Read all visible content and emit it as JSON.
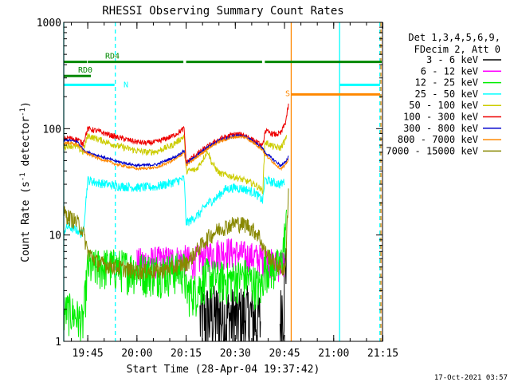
{
  "chart_data": {
    "type": "line",
    "title": "RHESSI Observing Summary Count Rates",
    "xlabel": "Start Time (28-Apr-04 19:37:42)",
    "ylabel_main": "Count Rate (s",
    "ylabel_exp1": "-1",
    "ylabel_mid": " detector",
    "ylabel_exp2": "-1",
    "ylabel_close": ")",
    "ylog": true,
    "ylim": [
      1,
      1000
    ],
    "xlim": [
      19.628,
      21.248
    ],
    "x_ticks": [
      {
        "x": 19.75,
        "label": "19:45"
      },
      {
        "x": 20.0,
        "label": "20:00"
      },
      {
        "x": 20.25,
        "label": "20:15"
      },
      {
        "x": 20.5,
        "label": "20:30"
      },
      {
        "x": 20.75,
        "label": "20:45"
      },
      {
        "x": 21.0,
        "label": "21:00"
      },
      {
        "x": 21.25,
        "label": "21:15"
      }
    ],
    "y_ticks": [
      {
        "y": 1,
        "label": "1"
      },
      {
        "y": 10,
        "label": "10"
      },
      {
        "y": 100,
        "label": "100"
      },
      {
        "y": 1000,
        "label": "1000"
      }
    ],
    "legend_header": [
      "Det 1,3,4,5,6,9,",
      "FDecim 2, Att 0"
    ],
    "series": [
      {
        "name": "3 - 6 keV",
        "color": "#000000",
        "points": [
          [
            20.3,
            null
          ],
          [
            20.32,
            1.7
          ],
          [
            20.35,
            1.8
          ],
          [
            20.4,
            1.8
          ],
          [
            20.45,
            1.7
          ],
          [
            20.5,
            1.7
          ],
          [
            20.55,
            1.8
          ],
          [
            20.59,
            1.7
          ],
          [
            20.63,
            1.6
          ],
          [
            20.65,
            null
          ],
          [
            20.727,
            1.5
          ],
          [
            20.74,
            2.5
          ],
          [
            20.76,
            8
          ],
          [
            20.78,
            null
          ]
        ]
      },
      {
        "name": "6 - 12 keV",
        "color": "#ff00ff",
        "points": [
          [
            20.0,
            5.6
          ],
          [
            20.1,
            5.8
          ],
          [
            20.25,
            6.0
          ],
          [
            20.28,
            5.6
          ],
          [
            20.35,
            6.5
          ],
          [
            20.45,
            7.2
          ],
          [
            20.55,
            6.5
          ],
          [
            20.65,
            6.0
          ],
          [
            20.7,
            5.3
          ],
          [
            20.75,
            5.6
          ]
        ]
      },
      {
        "name": "12 - 25 keV",
        "color": "#00ee00",
        "points": [
          [
            19.63,
            1.9
          ],
          [
            19.65,
            2.0
          ],
          [
            19.7,
            1.7
          ],
          [
            19.725,
            1.5
          ],
          [
            19.75,
            5.0
          ],
          [
            19.85,
            5.2
          ],
          [
            19.95,
            5.0
          ],
          [
            20.05,
            4.6
          ],
          [
            20.15,
            4.6
          ],
          [
            20.24,
            4.8
          ],
          [
            20.25,
            3.0
          ],
          [
            20.3,
            3.0
          ],
          [
            20.35,
            4.2
          ],
          [
            20.45,
            3.8
          ],
          [
            20.55,
            4.2
          ],
          [
            20.63,
            3.2
          ],
          [
            20.65,
            5.2
          ],
          [
            20.7,
            5.0
          ],
          [
            20.73,
            5.2
          ],
          [
            20.76,
            13
          ]
        ]
      },
      {
        "name": "25 - 50 keV",
        "color": "#00ffff",
        "points": [
          [
            19.63,
            11
          ],
          [
            19.65,
            12
          ],
          [
            19.7,
            11
          ],
          [
            19.725,
            10
          ],
          [
            19.75,
            33
          ],
          [
            19.8,
            31
          ],
          [
            19.9,
            29
          ],
          [
            20.0,
            28
          ],
          [
            20.1,
            28.5
          ],
          [
            20.2,
            32
          ],
          [
            20.24,
            34
          ],
          [
            20.25,
            13
          ],
          [
            20.28,
            14
          ],
          [
            20.32,
            16
          ],
          [
            20.36,
            20
          ],
          [
            20.4,
            22
          ],
          [
            20.45,
            27
          ],
          [
            20.5,
            28
          ],
          [
            20.55,
            27
          ],
          [
            20.6,
            25
          ],
          [
            20.64,
            21
          ],
          [
            20.65,
            33
          ],
          [
            20.7,
            31
          ],
          [
            20.73,
            30
          ],
          [
            20.75,
            32
          ]
        ]
      },
      {
        "name": "50 - 100 keV",
        "color": "#cccc00",
        "points": [
          [
            19.63,
            67
          ],
          [
            19.65,
            70
          ],
          [
            19.7,
            67
          ],
          [
            19.725,
            60
          ],
          [
            19.75,
            86
          ],
          [
            19.8,
            80
          ],
          [
            19.9,
            69
          ],
          [
            20.0,
            62
          ],
          [
            20.05,
            60
          ],
          [
            20.1,
            61
          ],
          [
            20.18,
            70
          ],
          [
            20.24,
            85
          ],
          [
            20.25,
            40
          ],
          [
            20.3,
            41
          ],
          [
            20.33,
            50
          ],
          [
            20.36,
            62
          ],
          [
            20.38,
            48
          ],
          [
            20.42,
            38
          ],
          [
            20.5,
            35
          ],
          [
            20.6,
            30
          ],
          [
            20.64,
            26
          ],
          [
            20.65,
            75
          ],
          [
            20.7,
            67
          ],
          [
            20.73,
            66
          ],
          [
            20.76,
            82
          ]
        ]
      },
      {
        "name": "100 - 300 keV",
        "color": "#ee0000",
        "points": [
          [
            19.63,
            80
          ],
          [
            19.65,
            82
          ],
          [
            19.7,
            79
          ],
          [
            19.725,
            72
          ],
          [
            19.75,
            100
          ],
          [
            19.8,
            95
          ],
          [
            19.9,
            83
          ],
          [
            20.0,
            75
          ],
          [
            20.05,
            73
          ],
          [
            20.1,
            75
          ],
          [
            20.18,
            85
          ],
          [
            20.24,
            100
          ],
          [
            20.25,
            48
          ],
          [
            20.3,
            57
          ],
          [
            20.36,
            68
          ],
          [
            20.42,
            80
          ],
          [
            20.5,
            89
          ],
          [
            20.55,
            87
          ],
          [
            20.6,
            76
          ],
          [
            20.64,
            68
          ],
          [
            20.65,
            95
          ],
          [
            20.7,
            88
          ],
          [
            20.73,
            90
          ],
          [
            20.755,
            115
          ],
          [
            20.77,
            165
          ]
        ]
      },
      {
        "name": "300 - 800 keV",
        "color": "#0000cc",
        "points": [
          [
            19.63,
            77
          ],
          [
            19.65,
            78
          ],
          [
            19.7,
            75
          ],
          [
            19.725,
            64
          ],
          [
            19.75,
            60
          ],
          [
            19.8,
            56
          ],
          [
            19.9,
            49
          ],
          [
            20.0,
            45
          ],
          [
            20.1,
            46
          ],
          [
            20.2,
            55
          ],
          [
            20.24,
            62
          ],
          [
            20.25,
            47
          ],
          [
            20.3,
            55
          ],
          [
            20.36,
            67
          ],
          [
            20.42,
            78
          ],
          [
            20.5,
            86
          ],
          [
            20.55,
            85
          ],
          [
            20.6,
            74
          ],
          [
            20.64,
            65
          ],
          [
            20.65,
            60
          ],
          [
            20.7,
            50
          ],
          [
            20.73,
            45
          ],
          [
            20.755,
            48
          ],
          [
            20.77,
            55
          ]
        ]
      },
      {
        "name": "800 - 7000 keV",
        "color": "#ff8800",
        "points": [
          [
            19.63,
            73
          ],
          [
            19.65,
            74
          ],
          [
            19.7,
            71
          ],
          [
            19.725,
            62
          ],
          [
            19.75,
            58
          ],
          [
            19.8,
            53
          ],
          [
            19.9,
            46
          ],
          [
            20.0,
            42
          ],
          [
            20.1,
            43
          ],
          [
            20.2,
            52
          ],
          [
            20.24,
            60
          ],
          [
            20.25,
            45
          ],
          [
            20.3,
            53
          ],
          [
            20.36,
            65
          ],
          [
            20.42,
            76
          ],
          [
            20.5,
            84
          ],
          [
            20.55,
            83
          ],
          [
            20.6,
            72
          ],
          [
            20.64,
            63
          ],
          [
            20.65,
            57
          ],
          [
            20.7,
            47
          ],
          [
            20.73,
            42
          ],
          [
            20.755,
            45
          ],
          [
            20.77,
            52
          ]
        ]
      },
      {
        "name": "7000 - 15000 keV",
        "color": "#888800",
        "points": [
          [
            19.63,
            16
          ],
          [
            19.65,
            15
          ],
          [
            19.7,
            13
          ],
          [
            19.725,
            11
          ],
          [
            19.75,
            7
          ],
          [
            19.8,
            5.5
          ],
          [
            19.9,
            5.0
          ],
          [
            20.0,
            4.6
          ],
          [
            20.1,
            4.6
          ],
          [
            20.2,
            5.0
          ],
          [
            20.24,
            5.4
          ],
          [
            20.25,
            5.4
          ],
          [
            20.3,
            7.0
          ],
          [
            20.36,
            9.5
          ],
          [
            20.42,
            11.5
          ],
          [
            20.5,
            13
          ],
          [
            20.56,
            12.5
          ],
          [
            20.62,
            10
          ],
          [
            20.65,
            7
          ],
          [
            20.7,
            5.5
          ],
          [
            20.73,
            5.0
          ],
          [
            20.755,
            4.5
          ],
          [
            20.76,
            10
          ],
          [
            20.77,
            25
          ]
        ]
      }
    ],
    "annotations": {
      "flags": [
        {
          "label": "RD0",
          "y_pct": 0.168,
          "segments": [
            [
              19.628,
              19.77
            ]
          ],
          "color": "#008800"
        },
        {
          "label": "RD4",
          "y_pct": 0.124,
          "segments": [
            [
              19.628,
              19.75
            ],
            [
              19.75,
              20.24
            ],
            [
              20.25,
              20.64
            ],
            [
              20.65,
              21.248
            ]
          ],
          "color": "#008800"
        },
        {
          "label": "N",
          "y_pct": 0.196,
          "segments": [
            [
              19.628,
              19.89
            ],
            [
              21.03,
              21.24
            ]
          ],
          "color": "#00ffff"
        },
        {
          "label": "S",
          "y_pct": 0.226,
          "segments": [
            [
              20.784,
              21.24
            ]
          ],
          "color": "#ff8800"
        }
      ],
      "vlines": [
        {
          "x": 19.628,
          "color": "#00ffff",
          "dash": false
        },
        {
          "x": 19.89,
          "color": "#00ffff",
          "dash": true
        },
        {
          "x": 20.784,
          "color": "#ff8800",
          "dash": false
        },
        {
          "x": 21.03,
          "color": "#00ffff",
          "dash": false
        },
        {
          "x": 21.235,
          "color": "#00ffff",
          "dash": true
        },
        {
          "x": 21.24,
          "color": "#ff8800",
          "dash": true
        }
      ]
    },
    "legend_position": "right",
    "grid": false
  },
  "footer": {
    "timestamp": "17-Oct-2021 03:57"
  }
}
